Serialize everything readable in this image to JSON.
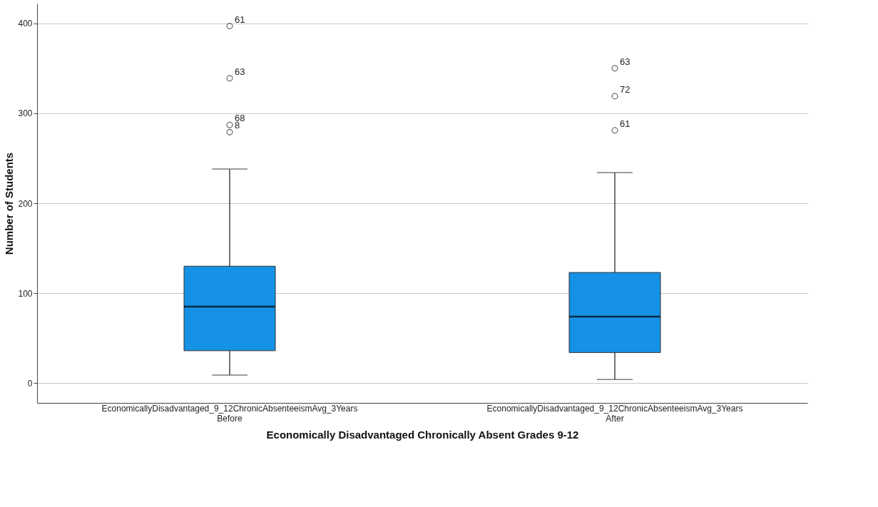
{
  "chart_data": {
    "type": "box",
    "xlabel": "Economically Disadvantaged Chronically Absent Grades 9-12",
    "ylabel": "Number of Students",
    "categories": [
      "EconomicallyDisadvantaged_9_12ChronicAbsenteeismAvg_3Years\nBefore",
      "EconomicallyDisadvantaged_9_12ChronicAbsenteeismAvg_3Years\nAfter"
    ],
    "series": [
      {
        "color": "#1591e6",
        "boxes": [
          {
            "low": 9,
            "q1": 36,
            "median": 85,
            "q3": 130,
            "high": 238,
            "outliers": [
              397,
              339,
              287,
              279
            ]
          },
          {
            "low": 4,
            "q1": 34,
            "median": 74,
            "q3": 123,
            "high": 234,
            "outliers": [
              350,
              319,
              281
            ]
          }
        ]
      }
    ],
    "annotations": [
      "61",
      "63",
      "68",
      "8",
      "63",
      "72",
      "61"
    ],
    "ylim": [
      -22,
      422
    ],
    "yticks": [
      0,
      100,
      200,
      300,
      400
    ],
    "grid": "y"
  }
}
